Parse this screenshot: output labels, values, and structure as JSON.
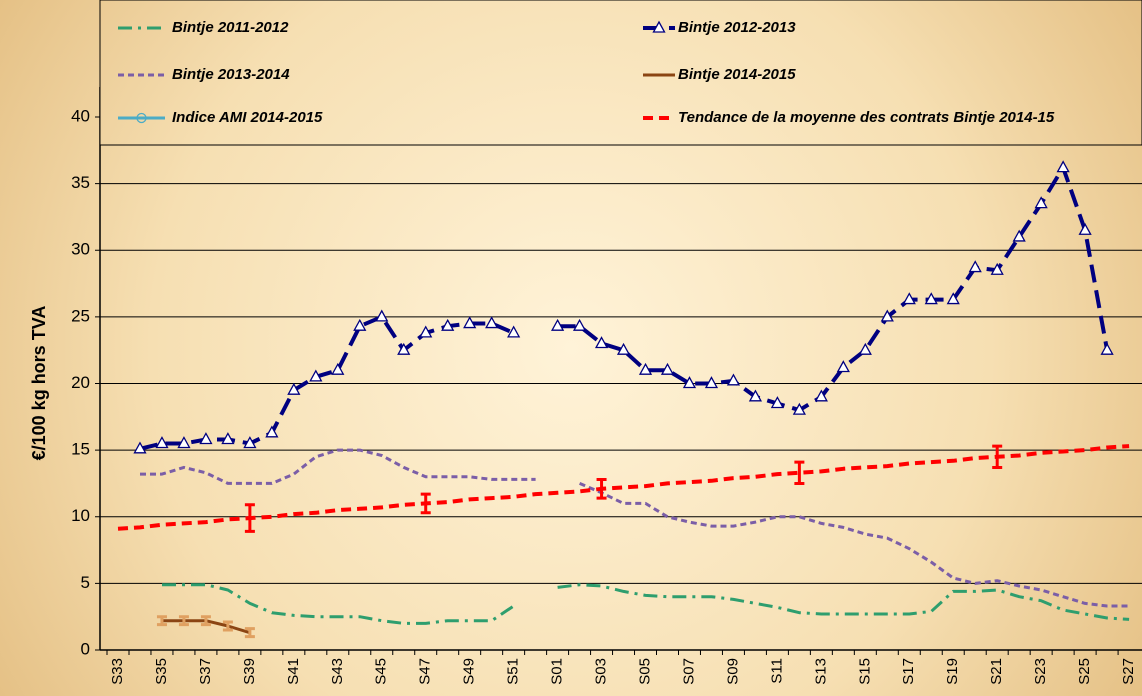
{
  "chart_data": {
    "type": "line",
    "y_label": "€/100 kg hors TVA",
    "categories": [
      "S33",
      null,
      "S35",
      null,
      "S37",
      null,
      "S39",
      null,
      "S41",
      null,
      "S43",
      null,
      "S45",
      null,
      "S47",
      null,
      "S49",
      null,
      "S51",
      null,
      "S01",
      null,
      "S03",
      null,
      "S05",
      null,
      "S07",
      null,
      "S09",
      null,
      "S11",
      null,
      "S13",
      null,
      "S15",
      null,
      "S17",
      null,
      "S19",
      null,
      "S21",
      null,
      "S23",
      null,
      "S25",
      null,
      "S27"
    ],
    "ylim": [
      0,
      40
    ],
    "yticks": [
      0,
      5,
      10,
      15,
      20,
      25,
      30,
      35,
      40
    ],
    "grid": true,
    "series": [
      {
        "name": "Bintje 2011-2012",
        "color": "#2e9e6e",
        "line_style": "dash-dot",
        "marker": "none",
        "values": [
          null,
          null,
          4.9,
          4.9,
          4.9,
          4.5,
          3.5,
          2.8,
          2.6,
          2.5,
          2.5,
          2.5,
          2.2,
          2.0,
          2.0,
          2.2,
          2.2,
          2.2,
          3.3,
          null,
          4.7,
          4.9,
          4.8,
          4.4,
          4.1,
          4.0,
          4.0,
          4.0,
          3.8,
          3.5,
          3.2,
          2.8,
          2.7,
          2.7,
          2.7,
          2.7,
          2.7,
          2.9,
          4.4,
          4.4,
          4.5,
          4.0,
          3.7,
          3.0,
          2.7,
          2.4,
          2.3
        ]
      },
      {
        "name": "Bintje 2012-2013",
        "color": "#000080",
        "line_style": "long-dash",
        "marker": "triangle",
        "values": [
          null,
          15.1,
          15.5,
          15.5,
          15.8,
          15.8,
          15.5,
          16.3,
          19.5,
          20.5,
          21.0,
          24.3,
          25.0,
          22.5,
          23.8,
          24.3,
          24.5,
          24.5,
          23.8,
          null,
          24.3,
          24.3,
          23.0,
          22.5,
          21.0,
          21.0,
          20.0,
          20.0,
          20.2,
          19.0,
          18.5,
          18.0,
          19.0,
          21.2,
          22.5,
          25.0,
          26.3,
          26.3,
          26.3,
          28.7,
          28.5,
          31.0,
          33.5,
          36.2,
          31.5,
          22.5,
          null
        ]
      },
      {
        "name": "Bintje 2013-2014",
        "color": "#7b5ea7",
        "line_style": "short-dash",
        "marker": "none",
        "values": [
          null,
          13.2,
          13.2,
          13.7,
          13.3,
          12.5,
          12.5,
          12.5,
          13.2,
          14.5,
          15.0,
          15.0,
          14.6,
          13.7,
          13.0,
          13.0,
          13.0,
          12.8,
          12.8,
          12.8,
          null,
          12.5,
          11.8,
          11.0,
          11.0,
          10.0,
          9.6,
          9.3,
          9.3,
          9.6,
          10.0,
          10.0,
          9.5,
          9.2,
          8.7,
          8.4,
          7.6,
          6.6,
          5.4,
          5.0,
          5.2,
          4.8,
          4.5,
          4.0,
          3.5,
          3.3,
          3.3
        ]
      },
      {
        "name": "Bintje 2014-2015",
        "color": "#8b4513",
        "line_style": "solid",
        "marker": "none",
        "error_color": "#e0a060",
        "values": [
          null,
          null,
          2.2,
          2.2,
          2.2,
          1.8,
          1.3,
          null,
          null,
          null,
          null,
          null,
          null,
          null,
          null,
          null,
          null,
          null,
          null,
          null,
          null,
          null,
          null,
          null,
          null,
          null,
          null,
          null,
          null,
          null,
          null,
          null,
          null,
          null,
          null,
          null,
          null,
          null,
          null,
          null,
          null,
          null,
          null,
          null,
          null,
          null,
          null
        ],
        "errors": [
          null,
          null,
          0.3,
          0.3,
          0.3,
          0.3,
          0.3,
          null,
          null,
          null,
          null,
          null,
          null,
          null,
          null,
          null,
          null,
          null,
          null,
          null,
          null,
          null,
          null,
          null,
          null,
          null,
          null,
          null,
          null,
          null,
          null,
          null,
          null,
          null,
          null,
          null,
          null,
          null,
          null,
          null,
          null,
          null,
          null,
          null,
          null,
          null,
          null
        ]
      },
      {
        "name": "Indice AMI 2014-2015",
        "color": "#4bacc6",
        "line_style": "solid",
        "marker": "circle",
        "values": [
          null,
          null,
          null,
          null,
          null,
          null,
          null,
          null,
          null,
          null,
          null,
          null,
          null,
          null,
          null,
          null,
          null,
          null,
          null,
          null,
          null,
          null,
          null,
          null,
          null,
          null,
          null,
          null,
          null,
          null,
          null,
          null,
          null,
          null,
          null,
          null,
          null,
          null,
          null,
          null,
          null,
          null,
          null,
          null,
          null,
          null,
          null
        ]
      },
      {
        "name": "Tendance de la moyenne des contrats Bintje 2014-15",
        "color": "#ff0000",
        "line_style": "dash",
        "marker": "none",
        "error_color": "#ff0000",
        "values": [
          9.1,
          9.2,
          9.4,
          9.5,
          9.6,
          9.8,
          9.9,
          10.0,
          10.2,
          10.3,
          10.5,
          10.6,
          10.7,
          10.9,
          11.0,
          11.1,
          11.3,
          11.4,
          11.5,
          11.7,
          11.8,
          11.9,
          12.1,
          12.2,
          12.3,
          12.5,
          12.6,
          12.7,
          12.9,
          13.0,
          13.2,
          13.3,
          13.4,
          13.6,
          13.7,
          13.8,
          14.0,
          14.1,
          14.2,
          14.4,
          14.5,
          14.6,
          14.8,
          14.9,
          15.0,
          15.2,
          15.3
        ],
        "errors": [
          null,
          null,
          null,
          null,
          null,
          null,
          1.0,
          null,
          null,
          null,
          null,
          null,
          null,
          null,
          0.7,
          null,
          null,
          null,
          null,
          null,
          null,
          null,
          0.7,
          null,
          null,
          null,
          null,
          null,
          null,
          null,
          null,
          0.8,
          null,
          null,
          null,
          null,
          null,
          null,
          null,
          null,
          0.8,
          null,
          null,
          null,
          null,
          null,
          null
        ]
      }
    ]
  }
}
